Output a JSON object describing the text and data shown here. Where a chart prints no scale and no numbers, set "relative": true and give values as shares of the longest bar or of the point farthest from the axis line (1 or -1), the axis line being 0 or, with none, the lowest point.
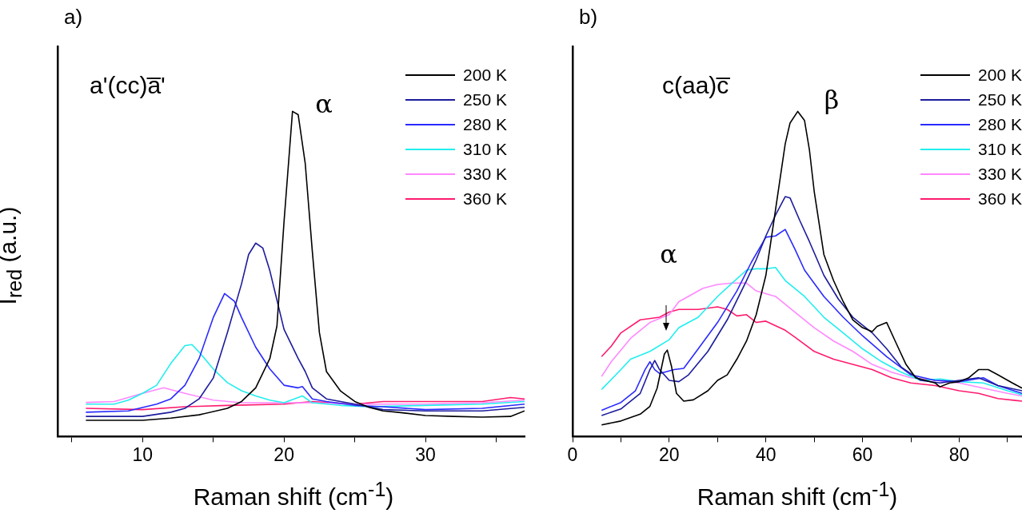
{
  "chart_data": [
    {
      "type": "line",
      "title": "a)",
      "xlabel": "Raman shift (cm$^{-1}$)",
      "ylabel": "I$_{red}$ (a.u.)",
      "relative": true,
      "xlim": [
        4,
        37
      ],
      "xticks": [
        {
          "value": 5,
          "label": null
        },
        10,
        {
          "value": 15,
          "label": null
        },
        20,
        {
          "value": 25,
          "label": null
        },
        30,
        {
          "value": 35,
          "label": null
        }
      ],
      "tick_labels": "x",
      "grid": false,
      "legend": "top right",
      "marker": "none",
      "line_style": "solid",
      "annotations": [
        "a'(cc)a̅'",
        "α"
      ],
      "series": [
        {
          "name": "200 K",
          "color": "#000000",
          "x": [
            6,
            10,
            12,
            14,
            16,
            17,
            18,
            19,
            19.5,
            20,
            20.6,
            21,
            21.5,
            22,
            22.5,
            23,
            24,
            25,
            26,
            27,
            28,
            30,
            32,
            34,
            36,
            37
          ],
          "values": [
            0.05,
            0.05,
            0.057,
            0.067,
            0.087,
            0.108,
            0.15,
            0.24,
            0.34,
            0.66,
            1.0,
            0.99,
            0.84,
            0.57,
            0.32,
            0.2,
            0.14,
            0.108,
            0.09,
            0.079,
            0.075,
            0.065,
            0.062,
            0.06,
            0.062,
            0.079
          ]
        },
        {
          "name": "250 K",
          "color": "#1c1c9c",
          "x": [
            6,
            10,
            12,
            13,
            14,
            15,
            16,
            17,
            17.5,
            18,
            18.5,
            19,
            19.5,
            20,
            21,
            21.5,
            22,
            23,
            25,
            27,
            30,
            34,
            37
          ],
          "values": [
            0.062,
            0.062,
            0.075,
            0.087,
            0.116,
            0.18,
            0.32,
            0.47,
            0.56,
            0.595,
            0.58,
            0.51,
            0.42,
            0.33,
            0.24,
            0.2,
            0.15,
            0.116,
            0.1,
            0.083,
            0.079,
            0.079,
            0.09
          ]
        },
        {
          "name": "280 K",
          "color": "#2a2aff",
          "x": [
            6,
            9,
            11,
            12,
            13,
            14,
            15,
            15.8,
            16.5,
            17,
            18,
            19,
            20,
            21,
            21.3,
            22,
            23,
            25,
            27,
            30,
            34,
            37
          ],
          "values": [
            0.075,
            0.079,
            0.1,
            0.116,
            0.158,
            0.24,
            0.366,
            0.44,
            0.416,
            0.366,
            0.275,
            0.208,
            0.158,
            0.15,
            0.154,
            0.116,
            0.108,
            0.096,
            0.092,
            0.083,
            0.087,
            0.1
          ]
        },
        {
          "name": "310 K",
          "color": "#22eeee",
          "x": [
            6,
            8,
            9,
            10,
            11,
            12,
            13,
            13.5,
            14,
            15,
            16,
            17,
            18,
            19,
            20,
            21.3,
            22,
            24,
            26,
            30,
            34,
            37
          ],
          "values": [
            0.1,
            0.1,
            0.112,
            0.133,
            0.158,
            0.225,
            0.28,
            0.283,
            0.26,
            0.208,
            0.166,
            0.141,
            0.125,
            0.112,
            0.104,
            0.125,
            0.104,
            0.096,
            0.092,
            0.096,
            0.1,
            0.108
          ]
        },
        {
          "name": "330 K",
          "color": "#ff88ff",
          "x": [
            6,
            8,
            10,
            11.5,
            13,
            15,
            17,
            20,
            22,
            25,
            30,
            34,
            37
          ],
          "values": [
            0.105,
            0.108,
            0.133,
            0.15,
            0.133,
            0.112,
            0.104,
            0.104,
            0.104,
            0.1,
            0.1,
            0.104,
            0.112
          ]
        },
        {
          "name": "360 K",
          "color": "#ff1a6e",
          "x": [
            6,
            10,
            13,
            16,
            20,
            22,
            25,
            27,
            30,
            34,
            36,
            37
          ],
          "values": [
            0.087,
            0.083,
            0.092,
            0.096,
            0.1,
            0.108,
            0.1,
            0.108,
            0.108,
            0.108,
            0.12,
            0.116
          ]
        }
      ]
    },
    {
      "type": "line",
      "title": "b)",
      "xlabel": "Raman shift (cm$^{-1}$)",
      "relative": true,
      "xlim": [
        0,
        93
      ],
      "xticks": [
        0,
        {
          "value": 10,
          "label": null
        },
        20,
        {
          "value": 30,
          "label": null
        },
        40,
        {
          "value": 50,
          "label": null
        },
        60,
        {
          "value": 70,
          "label": null
        },
        80,
        {
          "value": 90,
          "label": null
        }
      ],
      "tick_labels": "x",
      "grid": false,
      "legend": "top right",
      "marker": "none",
      "line_style": "solid",
      "annotations": [
        "c(aa)c̅",
        "β",
        "α"
      ],
      "series": [
        {
          "name": "200 K",
          "color": "#000000",
          "x": [
            6,
            10,
            14,
            16,
            17.5,
            19,
            19.6,
            20.5,
            21.5,
            23,
            25,
            28,
            30,
            32,
            34,
            36,
            38,
            40,
            42,
            44,
            45,
            46.6,
            48,
            49,
            50,
            52,
            54,
            56,
            58,
            60,
            62,
            63,
            65,
            67,
            69,
            71,
            73,
            75,
            76,
            78,
            80,
            82,
            84,
            86,
            88,
            91,
            93
          ],
          "values": [
            0.036,
            0.048,
            0.069,
            0.093,
            0.149,
            0.254,
            0.266,
            0.214,
            0.133,
            0.109,
            0.113,
            0.141,
            0.173,
            0.19,
            0.238,
            0.294,
            0.375,
            0.496,
            0.698,
            0.9,
            0.964,
            1.0,
            0.972,
            0.883,
            0.754,
            0.56,
            0.48,
            0.415,
            0.359,
            0.335,
            0.323,
            0.339,
            0.351,
            0.286,
            0.222,
            0.181,
            0.173,
            0.165,
            0.153,
            0.165,
            0.169,
            0.181,
            0.206,
            0.206,
            0.19,
            0.165,
            0.149
          ]
        },
        {
          "name": "250 K",
          "color": "#1c1c9c",
          "x": [
            6,
            10,
            14,
            16,
            17,
            18,
            20,
            22,
            24,
            28,
            32,
            36,
            38,
            40,
            42,
            44,
            45,
            47,
            49,
            52,
            55,
            58,
            62,
            65,
            68,
            72,
            76,
            80,
            84,
            88,
            93
          ],
          "values": [
            0.065,
            0.085,
            0.133,
            0.206,
            0.234,
            0.206,
            0.173,
            0.169,
            0.19,
            0.262,
            0.359,
            0.48,
            0.544,
            0.617,
            0.681,
            0.738,
            0.734,
            0.665,
            0.6,
            0.496,
            0.423,
            0.367,
            0.319,
            0.27,
            0.214,
            0.173,
            0.165,
            0.173,
            0.181,
            0.157,
            0.141
          ]
        },
        {
          "name": "280 K",
          "color": "#2a2aff",
          "x": [
            6,
            10,
            13,
            15,
            16,
            17,
            18,
            21,
            23,
            26,
            30,
            34,
            37,
            40,
            42,
            44,
            46,
            48,
            52,
            56,
            60,
            65,
            70,
            75,
            80,
            85,
            88,
            93
          ],
          "values": [
            0.081,
            0.105,
            0.141,
            0.206,
            0.23,
            0.206,
            0.194,
            0.206,
            0.21,
            0.27,
            0.351,
            0.448,
            0.536,
            0.613,
            0.617,
            0.637,
            0.577,
            0.512,
            0.431,
            0.367,
            0.31,
            0.246,
            0.19,
            0.173,
            0.169,
            0.181,
            0.157,
            0.133
          ]
        },
        {
          "name": "310 K",
          "color": "#22eeee",
          "x": [
            6,
            10,
            12,
            16,
            20,
            22,
            26,
            30,
            33,
            36,
            38,
            40,
            42,
            44,
            48,
            52,
            56,
            60,
            64,
            68,
            72,
            76,
            80,
            85,
            90,
            93
          ],
          "values": [
            0.145,
            0.206,
            0.238,
            0.262,
            0.298,
            0.335,
            0.367,
            0.431,
            0.472,
            0.512,
            0.516,
            0.516,
            0.52,
            0.48,
            0.431,
            0.367,
            0.319,
            0.27,
            0.23,
            0.198,
            0.173,
            0.177,
            0.169,
            0.165,
            0.141,
            0.129
          ]
        },
        {
          "name": "330 K",
          "color": "#ff88ff",
          "x": [
            6,
            8,
            12,
            16,
            20,
            22,
            27,
            30,
            33,
            36,
            38,
            42,
            46,
            50,
            54,
            58,
            62,
            66,
            70,
            75,
            80,
            85,
            90,
            93
          ],
          "values": [
            0.185,
            0.23,
            0.302,
            0.351,
            0.375,
            0.415,
            0.456,
            0.468,
            0.472,
            0.472,
            0.448,
            0.431,
            0.383,
            0.335,
            0.294,
            0.262,
            0.222,
            0.198,
            0.181,
            0.173,
            0.165,
            0.149,
            0.133,
            0.125
          ]
        },
        {
          "name": "360 K",
          "color": "#ff1a6e",
          "x": [
            6,
            8,
            10,
            14,
            18,
            20,
            22,
            26,
            30,
            32,
            34,
            36,
            38,
            40,
            44,
            46,
            50,
            54,
            58,
            62,
            66,
            70,
            75,
            80,
            84,
            88,
            93
          ],
          "values": [
            0.246,
            0.278,
            0.319,
            0.359,
            0.367,
            0.383,
            0.391,
            0.391,
            0.399,
            0.391,
            0.371,
            0.375,
            0.351,
            0.355,
            0.327,
            0.306,
            0.262,
            0.238,
            0.222,
            0.206,
            0.181,
            0.165,
            0.157,
            0.141,
            0.133,
            0.117,
            0.109
          ]
        }
      ]
    }
  ]
}
